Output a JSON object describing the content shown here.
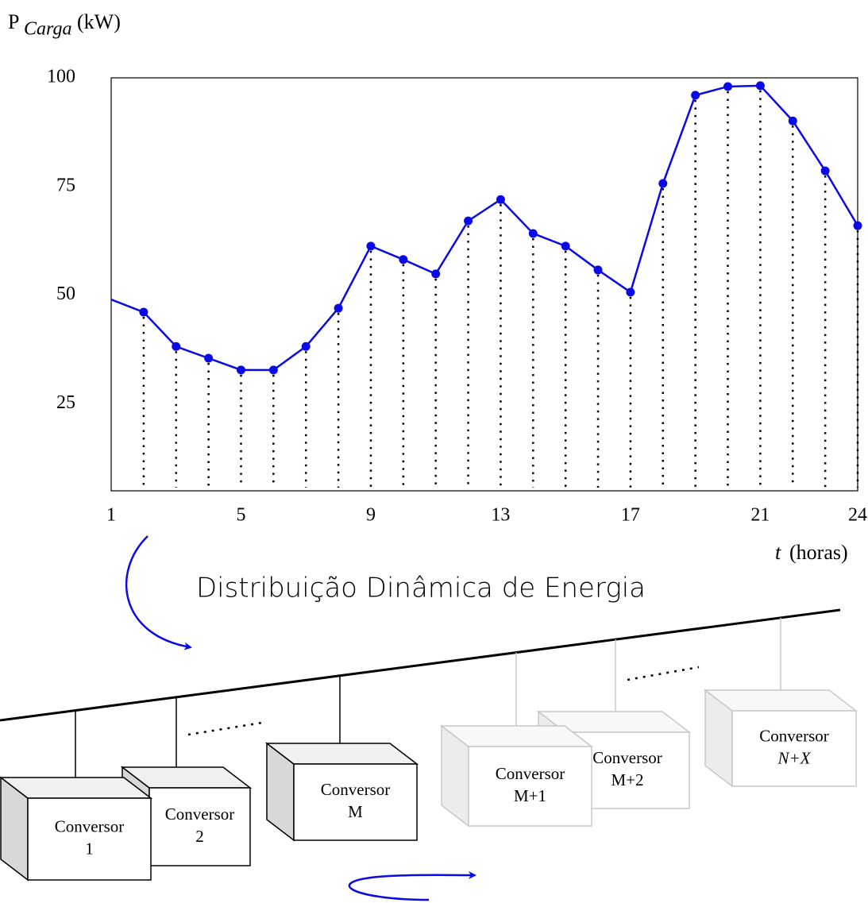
{
  "chart_data": {
    "type": "line",
    "y_label": {
      "main": "P",
      "sub": "Carga",
      "unit": "(kW)"
    },
    "x_label": {
      "var": "t",
      "unit": "(horas)"
    },
    "x": [
      1,
      2,
      3,
      4,
      5,
      6,
      7,
      8,
      9,
      10,
      11,
      12,
      13,
      14,
      15,
      16,
      17,
      18,
      19,
      20,
      21,
      22,
      23,
      24
    ],
    "series": [
      {
        "color": "#0a0ae6",
        "values": [
          49.0,
          46.1,
          38.2,
          35.5,
          32.8,
          32.8,
          38.2,
          47.0,
          61.3,
          58.2,
          54.9,
          67.1,
          72.0,
          64.2,
          61.3,
          55.8,
          50.7,
          75.7,
          96.0,
          98.0,
          98.2,
          90.1,
          78.6,
          66.0
        ]
      }
    ],
    "xlim": [
      1,
      24
    ],
    "xticks": [
      1,
      5,
      9,
      13,
      17,
      21,
      24
    ],
    "ylim": [
      5,
      100
    ],
    "yticks": [
      25,
      50,
      75,
      100
    ]
  },
  "diagram": {
    "title": "Distribuição Dinâmica de Energia",
    "nodes": [
      {
        "label": [
          "Conversor",
          "1"
        ]
      },
      {
        "label": [
          "Conversor",
          "2"
        ]
      },
      {
        "label": [
          "Conversor",
          "M"
        ]
      },
      {
        "label": [
          "Conversor",
          "M+1"
        ]
      },
      {
        "label": [
          "Conversor",
          "M+2"
        ]
      },
      {
        "label": [
          "Conversor",
          "N+X"
        ]
      }
    ]
  }
}
